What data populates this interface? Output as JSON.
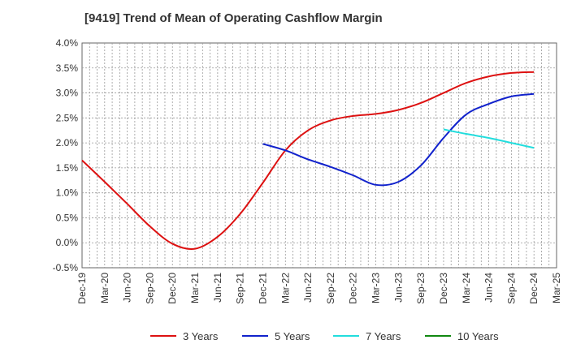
{
  "chart_data": {
    "type": "line",
    "title": "[9419]  Trend of Mean of Operating Cashflow Margin",
    "x_ticks": [
      "Dec-19",
      "Mar-20",
      "Jun-20",
      "Sep-20",
      "Dec-20",
      "Mar-21",
      "Jun-21",
      "Sep-21",
      "Dec-21",
      "Mar-22",
      "Jun-22",
      "Sep-22",
      "Dec-22",
      "Mar-23",
      "Jun-23",
      "Sep-23",
      "Dec-23",
      "Mar-24",
      "Jun-24",
      "Sep-24",
      "Dec-24",
      "Mar-25"
    ],
    "y_ticks": [
      "-0.5%",
      "0.0%",
      "0.5%",
      "1.0%",
      "1.5%",
      "2.0%",
      "2.5%",
      "3.0%",
      "3.5%",
      "4.0%"
    ],
    "ylim": [
      -0.5,
      4.0
    ],
    "y_unit": "%",
    "grid": true,
    "legend_position": "bottom",
    "series": [
      {
        "name": "3 Years",
        "color": "#dd1111",
        "points": [
          [
            "Dec-19",
            1.65
          ],
          [
            "Mar-20",
            1.22
          ],
          [
            "Jun-20",
            0.78
          ],
          [
            "Sep-20",
            0.33
          ],
          [
            "Dec-20",
            -0.02
          ],
          [
            "Mar-21",
            -0.12
          ],
          [
            "Jun-21",
            0.12
          ],
          [
            "Sep-21",
            0.58
          ],
          [
            "Dec-21",
            1.2
          ],
          [
            "Mar-22",
            1.85
          ],
          [
            "Jun-22",
            2.25
          ],
          [
            "Sep-22",
            2.45
          ],
          [
            "Dec-22",
            2.54
          ],
          [
            "Mar-23",
            2.58
          ],
          [
            "Jun-23",
            2.66
          ],
          [
            "Sep-23",
            2.8
          ],
          [
            "Dec-23",
            3.0
          ],
          [
            "Mar-24",
            3.2
          ],
          [
            "Jun-24",
            3.33
          ],
          [
            "Sep-24",
            3.4
          ],
          [
            "Dec-24",
            3.42
          ]
        ]
      },
      {
        "name": "5 Years",
        "color": "#1122cc",
        "points": [
          [
            "Dec-21",
            1.98
          ],
          [
            "Mar-22",
            1.85
          ],
          [
            "Jun-22",
            1.67
          ],
          [
            "Sep-22",
            1.52
          ],
          [
            "Dec-22",
            1.35
          ],
          [
            "Mar-23",
            1.16
          ],
          [
            "Jun-23",
            1.22
          ],
          [
            "Sep-23",
            1.55
          ],
          [
            "Dec-23",
            2.1
          ],
          [
            "Mar-24",
            2.57
          ],
          [
            "Jun-24",
            2.78
          ],
          [
            "Sep-24",
            2.93
          ],
          [
            "Dec-24",
            2.98
          ]
        ]
      },
      {
        "name": "7 Years",
        "color": "#22dddd",
        "points": [
          [
            "Dec-23",
            2.27
          ],
          [
            "Mar-24",
            2.18
          ],
          [
            "Jun-24",
            2.1
          ],
          [
            "Sep-24",
            2.0
          ],
          [
            "Dec-24",
            1.9
          ]
        ]
      },
      {
        "name": "10 Years",
        "color": "#118811",
        "points": []
      }
    ]
  }
}
